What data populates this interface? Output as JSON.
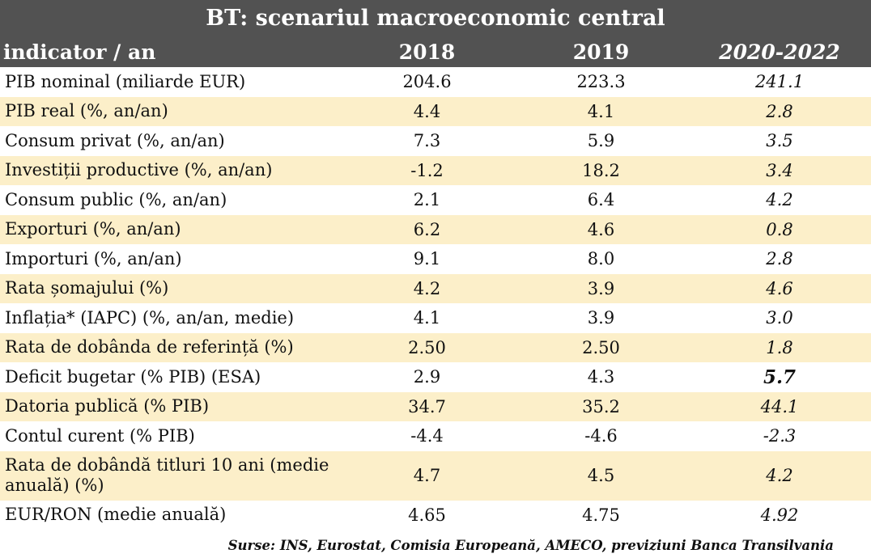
{
  "title": "BT: scenariul macroeconomic central",
  "table": {
    "header": {
      "label": "indicator / an",
      "col1": "2018",
      "col2": "2019",
      "col3": "2020-2022"
    },
    "rows": [
      {
        "label": "PIB nominal (miliarde EUR)",
        "v2018": "204.6",
        "v2019": "223.3",
        "v2020_2022": "241.1"
      },
      {
        "label": "PIB real (%, an/an)",
        "v2018": "4.4",
        "v2019": "4.1",
        "v2020_2022": "2.8"
      },
      {
        "label": "Consum privat (%, an/an)",
        "v2018": "7.3",
        "v2019": "5.9",
        "v2020_2022": "3.5"
      },
      {
        "label": "Investiții productive (%, an/an)",
        "v2018": "-1.2",
        "v2019": "18.2",
        "v2020_2022": "3.4"
      },
      {
        "label": "Consum public (%, an/an)",
        "v2018": "2.1",
        "v2019": "6.4",
        "v2020_2022": "4.2"
      },
      {
        "label": "Exporturi (%, an/an)",
        "v2018": "6.2",
        "v2019": "4.6",
        "v2020_2022": "0.8"
      },
      {
        "label": "Importuri (%, an/an)",
        "v2018": "9.1",
        "v2019": "8.0",
        "v2020_2022": "2.8"
      },
      {
        "label": "Rata șomajului (%)",
        "v2018": "4.2",
        "v2019": "3.9",
        "v2020_2022": "4.6"
      },
      {
        "label": "Inflația* (IAPC) (%, an/an, medie)",
        "v2018": "4.1",
        "v2019": "3.9",
        "v2020_2022": "3.0"
      },
      {
        "label": "Rata de dobânda de referință (%)",
        "v2018": "2.50",
        "v2019": "2.50",
        "v2020_2022": "1.8"
      },
      {
        "label": "Deficit bugetar (% PIB) (ESA)",
        "v2018": "2.9",
        "v2019": "4.3",
        "v2020_2022": "5.7"
      },
      {
        "label": "Datoria publică (% PIB)",
        "v2018": "34.7",
        "v2019": "35.2",
        "v2020_2022": "44.1"
      },
      {
        "label": "Contul curent (% PIB)",
        "v2018": "-4.4",
        "v2019": "-4.6",
        "v2020_2022": "-2.3"
      },
      {
        "label": "Rata de dobândă titluri 10 ani (medie anuală) (%)",
        "v2018": "4.7",
        "v2019": "4.5",
        "v2020_2022": "4.2"
      },
      {
        "label": "EUR/RON (medie anuală)",
        "v2018": "4.65",
        "v2019": "4.75",
        "v2020_2022": "4.92"
      }
    ]
  },
  "source": "Surse: INS, Eurostat, Comisia Europeană, AMECO, previziuni Banca Transilvania",
  "colors": {
    "header_bg": "#525252",
    "shade_row": "#fcefc9"
  }
}
